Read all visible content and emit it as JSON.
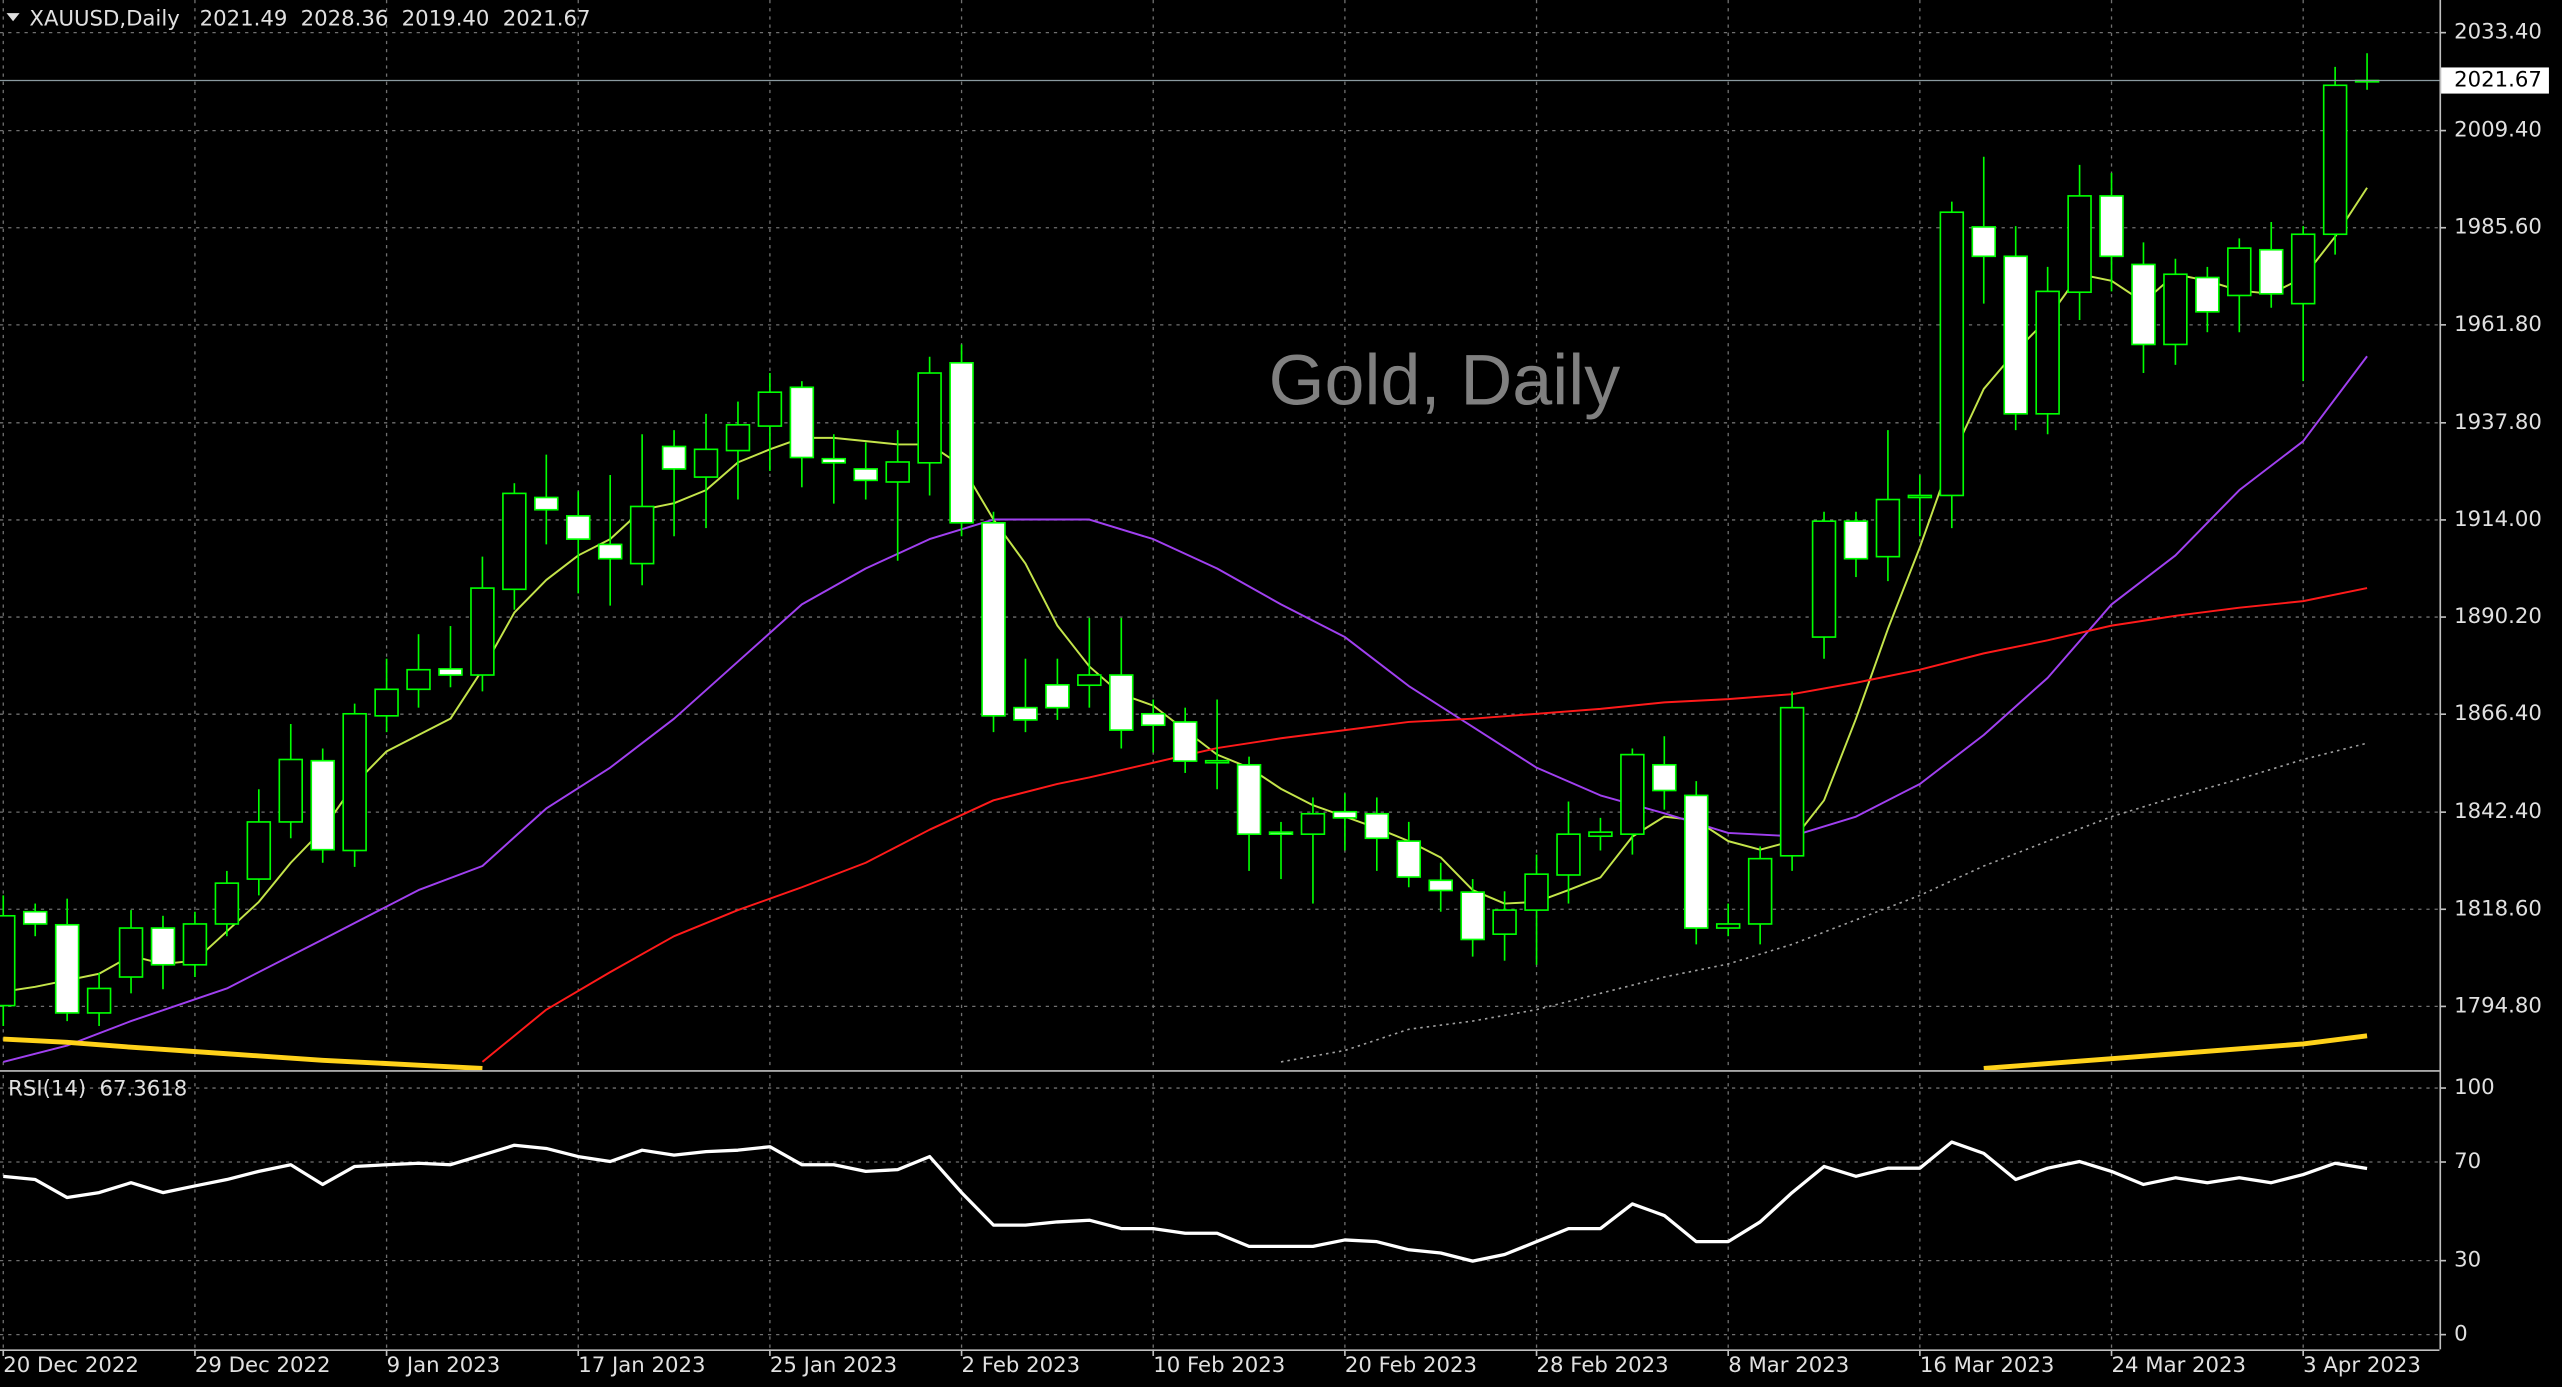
{
  "chart_data": {
    "type": "candlestick",
    "title": "XAUUSD,Daily",
    "header_values": [
      "2021.49",
      "2028.36",
      "2019.40",
      "2021.67"
    ],
    "watermark": "Gold, Daily",
    "categories": [
      "20 Dec 2022",
      null,
      null,
      null,
      null,
      null,
      "29 Dec 2022",
      null,
      null,
      null,
      null,
      null,
      "9 Jan 2023",
      null,
      null,
      null,
      null,
      null,
      "17 Jan 2023",
      null,
      null,
      null,
      null,
      null,
      "25 Jan 2023",
      null,
      null,
      null,
      null,
      null,
      "2 Feb 2023",
      null,
      null,
      null,
      null,
      null,
      "10 Feb 2023",
      null,
      null,
      null,
      null,
      null,
      "20 Feb 2023",
      null,
      null,
      null,
      null,
      null,
      "28 Feb 2023",
      null,
      null,
      null,
      null,
      null,
      "8 Mar 2023",
      null,
      null,
      null,
      null,
      null,
      "16 Mar 2023",
      null,
      null,
      null,
      null,
      null,
      "24 Mar 2023",
      null,
      null,
      null,
      null,
      null,
      "3 Apr 2023",
      null,
      null
    ],
    "open": [
      1795,
      1818,
      1814.8,
      1793.2,
      1802,
      1814,
      1805,
      1815,
      1826,
      1840,
      1855,
      1833,
      1866,
      1872.5,
      1877.5,
      1876,
      1897,
      1919.5,
      1915,
      1908,
      1903.3,
      1932,
      1924.5,
      1931,
      1937,
      1946.5,
      1929,
      1926.5,
      1923.3,
      1928,
      1952.5,
      1913.3,
      1868,
      1873.6,
      1873.5,
      1876,
      1866.5,
      1864.5,
      1854.5,
      1854,
      1837.5,
      1837,
      1842.5,
      1842,
      1835.3,
      1825.7,
      1822.8,
      1812.5,
      1818.4,
      1827,
      1836.5,
      1837,
      1854,
      1846.5,
      1814,
      1815,
      1831.7,
      1885.3,
      1913.7,
      1905,
      1919.5,
      1920,
      1985.8,
      1978.6,
      1940,
      1969.8,
      1993.4,
      1976.6,
      1957,
      1973.4,
      1969,
      1980.2,
      1967,
      1984,
      2021.49
    ],
    "high": [
      1822,
      1820,
      1821.2,
      1803,
      1818.4,
      1817,
      1818,
      1828,
      1848,
      1864,
      1858,
      1869,
      1880,
      1886,
      1888,
      1905,
      1923,
      1930,
      1921,
      1925,
      1935,
      1936,
      1940,
      1943,
      1950,
      1948,
      1935,
      1933,
      1936,
      1954,
      1957,
      1916,
      1880,
      1880,
      1890,
      1890,
      1870,
      1868,
      1870,
      1856,
      1840,
      1846,
      1847,
      1846,
      1840,
      1830,
      1826,
      1823,
      1832,
      1845,
      1841,
      1858,
      1861,
      1850,
      1820,
      1834,
      1872,
      1916,
      1916,
      1936,
      1925,
      1992,
      2003,
      1986,
      1976,
      2001,
      1999,
      1982,
      1978,
      1976,
      1983,
      1987,
      1986,
      2025,
      2028.36
    ],
    "low": [
      1790,
      1812,
      1791.2,
      1790,
      1798,
      1799,
      1802,
      1812,
      1822,
      1836,
      1830,
      1829,
      1862,
      1868,
      1873,
      1872,
      1892,
      1908,
      1896,
      1893,
      1898,
      1910,
      1912,
      1919,
      1926,
      1922,
      1918,
      1919,
      1904,
      1920,
      1910,
      1862,
      1862,
      1865,
      1868,
      1858,
      1857,
      1852,
      1848,
      1828,
      1826,
      1820,
      1833,
      1828,
      1824,
      1818,
      1807,
      1806,
      1805,
      1820,
      1833,
      1832,
      1843,
      1810,
      1812,
      1810,
      1828,
      1880,
      1900,
      1899,
      1910,
      1912,
      1967,
      1936,
      1935,
      1963,
      1970,
      1950,
      1952,
      1960,
      1960,
      1966,
      1948,
      1979,
      2019.4
    ],
    "close": [
      1817,
      1815,
      1793.2,
      1799.2,
      1814,
      1805,
      1815,
      1825,
      1840,
      1855.3,
      1833.2,
      1866.5,
      1872.5,
      1877.3,
      1876,
      1897.3,
      1920.5,
      1916.5,
      1909.3,
      1904.5,
      1917.3,
      1926.5,
      1931.3,
      1937.3,
      1945.3,
      1929.3,
      1928,
      1923.7,
      1928.2,
      1950,
      1913.3,
      1866,
      1865,
      1868,
      1876,
      1862.5,
      1863.7,
      1854.9,
      1855,
      1837,
      1837,
      1842,
      1841,
      1836,
      1826.5,
      1823.2,
      1811.2,
      1818.4,
      1827.2,
      1837,
      1837.5,
      1856.5,
      1847.7,
      1814,
      1815,
      1831,
      1868,
      1913.7,
      1904.5,
      1919,
      1920,
      1989.4,
      1978.6,
      1940,
      1970,
      1993.4,
      1978.6,
      1957,
      1974.2,
      1965,
      1980.6,
      1969.4,
      1984,
      2020.5,
      2021.67
    ],
    "up_color": "#000000",
    "down_color": "#ffffff",
    "wick_color": "#00ff00",
    "ylim": [
      1779.2,
      2041.4
    ],
    "yticks": [
      {
        "value": 1794.8,
        "label": "1794.80"
      },
      {
        "value": 1818.6,
        "label": "1818.60"
      },
      {
        "value": 1842.4,
        "label": "1842.40"
      },
      {
        "value": 1866.4,
        "label": "1866.40"
      },
      {
        "value": 1890.2,
        "label": "1890.20"
      },
      {
        "value": 1914,
        "label": "1914.00"
      },
      {
        "value": 1937.8,
        "label": "1937.80"
      },
      {
        "value": 1961.8,
        "label": "1961.80"
      },
      {
        "value": 1985.6,
        "label": "1985.60"
      },
      {
        "value": 2009.4,
        "label": "2009.40"
      },
      {
        "value": 2033.4,
        "label": "2033.40"
      }
    ],
    "grid": true,
    "indicators": [
      {
        "color": "#c4e44a",
        "style": "solid",
        "values": [
          1798.4,
          1799.6,
          1801.2,
          1802.8,
          1807.2,
          1805.2,
          1806.0,
          1813.2,
          1820.4,
          1830.0,
          1838.1,
          1849.3,
          1857.3,
          1861.3,
          1865.3,
          1877.3,
          1891.3,
          1899.3,
          1905.3,
          1909.3,
          1916.5,
          1918.1,
          1921.3,
          1928.1,
          1931.3,
          1934.1,
          1934.1,
          1933.3,
          1932.5,
          1932.5,
          1927.3,
          1914.1,
          1903.3,
          1888.1,
          1878.1,
          1871.3,
          1868.5,
          1862.5,
          1856.5,
          1853.3,
          1848.1,
          1844.1,
          1841.3,
          1838.5,
          1835.3,
          1831.3,
          1823.3,
          1820.0,
          1820.4,
          1823.3,
          1826.4,
          1836.4,
          1841.3,
          1840.4,
          1835.3,
          1833.2,
          1835.3,
          1845.3,
          1865.3,
          1887.3,
          1907.3,
          1929.3,
          1946.1,
          1955.3,
          1963.3,
          1974.2,
          1972.6,
          1967.4,
          1974.2,
          1972.6,
          1970.2,
          1969.4,
          1973.4,
          1983.4,
          1995.4
        ]
      },
      {
        "color": "#a040f0",
        "style": "solid",
        "x": [
          0,
          2,
          4,
          7,
          10,
          13,
          15,
          17,
          19,
          21,
          23,
          25,
          27,
          29,
          31,
          33,
          34,
          36,
          38,
          40,
          42,
          44,
          46,
          48,
          50,
          52,
          54,
          56,
          58,
          60,
          62,
          64,
          66,
          68,
          70,
          72,
          74
        ],
        "values": [
          1781.2,
          1785.2,
          1791.2,
          1799.2,
          1811.2,
          1823.3,
          1829.2,
          1843.3,
          1853.3,
          1865.3,
          1879.3,
          1893.3,
          1902.1,
          1909.3,
          1914.1,
          1914.1,
          1914.1,
          1909.3,
          1902.1,
          1893.3,
          1885.3,
          1873.3,
          1863.3,
          1853.3,
          1846.5,
          1842.1,
          1837.3,
          1836.5,
          1841.3,
          1849.3,
          1861.3,
          1875.3,
          1893.3,
          1905.3,
          1921.3,
          1933.3,
          1954.1
        ]
      },
      {
        "color": "#ff1a1a",
        "style": "solid",
        "x": [
          0,
          2,
          4,
          7,
          10,
          13,
          15,
          17,
          19,
          21,
          23,
          25,
          27,
          29,
          31,
          33,
          34,
          36,
          38,
          40,
          42,
          44,
          46,
          48,
          50,
          52,
          54,
          56,
          58,
          60,
          62,
          64,
          66,
          68,
          70,
          72,
          74
        ],
        "values": [
          null,
          null,
          null,
          null,
          null,
          null,
          1781.2,
          1794.0,
          1803.2,
          1812.0,
          1818.4,
          1824.0,
          1830.0,
          1838.1,
          1845.3,
          1849.3,
          1850.9,
          1854.5,
          1858.1,
          1860.5,
          1862.5,
          1864.5,
          1865.3,
          1866.5,
          1867.7,
          1869.3,
          1870.1,
          1871.3,
          1874.1,
          1877.3,
          1881.3,
          1884.5,
          1888.1,
          1890.5,
          1892.5,
          1894.1,
          1897.3
        ]
      },
      {
        "color": "#a0a0a0",
        "style": "dotted",
        "x": [
          0,
          2,
          4,
          7,
          10,
          13,
          15,
          17,
          19,
          21,
          23,
          25,
          27,
          29,
          31,
          33,
          34,
          36,
          38,
          40,
          42,
          44,
          46,
          48,
          50,
          52,
          54,
          56,
          58,
          60,
          62,
          64,
          66,
          68,
          70,
          72,
          74
        ],
        "values": [
          null,
          null,
          null,
          null,
          null,
          null,
          null,
          null,
          null,
          null,
          null,
          null,
          null,
          null,
          null,
          null,
          null,
          null,
          null,
          1781.2,
          1784.0,
          1789.2,
          1791.2,
          1794.0,
          1798.0,
          1802.0,
          1805.2,
          1810.0,
          1816.0,
          1822.0,
          1829.2,
          1835.3,
          1841.3,
          1846.1,
          1850.5,
          1855.3,
          1859.3
        ]
      },
      {
        "color": "#ffd21a",
        "style": "thick",
        "x": [
          0,
          2,
          4,
          7,
          10,
          13,
          15,
          17,
          19,
          21,
          23,
          25,
          27,
          29,
          31,
          33,
          34,
          36,
          38,
          40,
          42,
          44,
          46,
          48,
          50,
          52,
          54,
          56,
          58,
          60,
          62,
          64,
          66,
          68,
          70,
          72,
          74
        ],
        "values": [
          1786.8,
          1786.0,
          1784.8,
          1783.2,
          1781.6,
          1780.4,
          1779.6,
          null,
          null,
          null,
          null,
          null,
          null,
          null,
          null,
          null,
          null,
          null,
          null,
          null,
          null,
          null,
          null,
          null,
          null,
          null,
          null,
          null,
          null,
          null,
          1779.6,
          1780.8,
          1782.0,
          1783.2,
          1784.4,
          1785.6,
          1787.6
        ]
      }
    ],
    "rsi": {
      "label": "RSI(14)",
      "color": "#ffffff",
      "values": [
        64.2,
        62.9,
        55.6,
        57.6,
        61.6,
        57.6,
        60.3,
        62.9,
        66.2,
        68.9,
        60.9,
        68.2,
        68.9,
        69.5,
        68.9,
        72.8,
        76.8,
        75.5,
        72.2,
        70.2,
        74.8,
        72.8,
        74.2,
        74.8,
        76.2,
        68.9,
        68.9,
        66.2,
        66.9,
        72.2,
        57.6,
        44.4,
        44.4,
        45.7,
        46.4,
        43.0,
        43.0,
        41.1,
        41.1,
        35.8,
        35.8,
        35.8,
        38.4,
        37.7,
        34.4,
        33.1,
        29.8,
        32.5,
        37.7,
        43.0,
        43.0,
        53.0,
        48.3,
        37.7,
        37.7,
        45.7,
        57.6,
        68.2,
        64.2,
        67.5,
        67.5,
        78.1,
        73.5,
        62.9,
        67.5,
        70.2,
        66.2,
        60.9,
        63.6,
        61.6,
        63.6,
        61.6,
        64.9,
        69.5,
        67.3618
      ],
      "ylim": [
        -6,
        105.3
      ],
      "yticks": [
        0,
        30,
        70,
        100
      ]
    }
  }
}
